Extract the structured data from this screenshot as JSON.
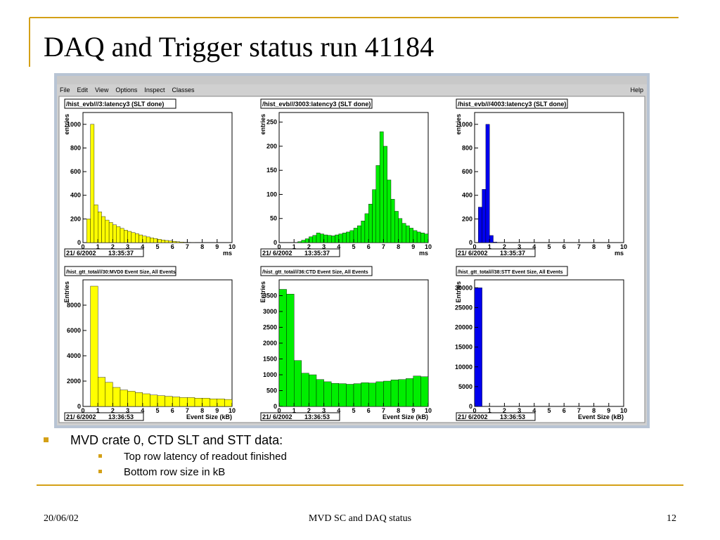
{
  "slide": {
    "title": "DAQ and Trigger status run 41184",
    "bullets": [
      {
        "text": "MVD crate 0, CTD SLT and STT data:",
        "sub": [
          "Top row latency of readout finished",
          "Bottom row size in kB"
        ]
      }
    ],
    "footer": {
      "date": "20/06/02",
      "center": "MVD SC and DAQ status",
      "page": "12"
    }
  },
  "window": {
    "menu": [
      "File",
      "Edit",
      "View",
      "Options",
      "Inspect",
      "Classes"
    ],
    "help": "Help"
  },
  "chart_data": [
    {
      "type": "histogram",
      "title": "/hist_evb///3:latency3 (SLT done)",
      "ylabel": "entries",
      "xlabel": "ms",
      "date": "21/ 6/2002",
      "time": "13:35:37",
      "color": "#ffff00",
      "bins": [
        0,
        0.25,
        0.5,
        0.75,
        1,
        1.25,
        1.5,
        1.75,
        2,
        2.25,
        2.5,
        2.75,
        3,
        3.25,
        3.5,
        3.75,
        4,
        4.25,
        4.5,
        4.75,
        5,
        5.25,
        5.5,
        5.75,
        6,
        6.25,
        6.5,
        6.75,
        7,
        7.25,
        7.5,
        7.75,
        8,
        8.25,
        8.5,
        8.75,
        9,
        9.25,
        9.5,
        9.75,
        10
      ],
      "values": [
        0,
        200,
        1000,
        320,
        260,
        220,
        190,
        170,
        150,
        135,
        120,
        105,
        95,
        85,
        75,
        65,
        55,
        48,
        40,
        34,
        28,
        22,
        18,
        14,
        10,
        7,
        5,
        3,
        2,
        1,
        0,
        0,
        0,
        0,
        0,
        0,
        0,
        0,
        0,
        0
      ],
      "xlim": [
        0,
        10
      ],
      "ylim": [
        0,
        1100
      ],
      "xticks": [
        0,
        1,
        2,
        3,
        4,
        5,
        6,
        7,
        8,
        9,
        10
      ],
      "yticks": [
        0,
        200,
        400,
        600,
        800,
        1000
      ]
    },
    {
      "type": "histogram",
      "title": "/hist_evb///3003:latency3 (SLT done)",
      "ylabel": "entries",
      "xlabel": "ms",
      "date": "21/ 6/2002",
      "time": "13:35:37",
      "color": "#00ee00",
      "bins": [
        0,
        0.25,
        0.5,
        0.75,
        1,
        1.25,
        1.5,
        1.75,
        2,
        2.25,
        2.5,
        2.75,
        3,
        3.25,
        3.5,
        3.75,
        4,
        4.25,
        4.5,
        4.75,
        5,
        5.25,
        5.5,
        5.75,
        6,
        6.25,
        6.5,
        6.75,
        7,
        7.25,
        7.5,
        7.75,
        8,
        8.25,
        8.5,
        8.75,
        9,
        9.25,
        9.5,
        9.75,
        10
      ],
      "values": [
        0,
        0,
        0,
        0,
        0,
        2,
        5,
        8,
        12,
        15,
        20,
        18,
        16,
        15,
        14,
        16,
        18,
        20,
        22,
        25,
        30,
        35,
        45,
        60,
        80,
        110,
        160,
        230,
        200,
        130,
        90,
        65,
        50,
        40,
        35,
        30,
        25,
        22,
        20,
        18
      ],
      "xlim": [
        0,
        10
      ],
      "ylim": [
        0,
        270
      ],
      "xticks": [
        0,
        1,
        2,
        3,
        4,
        5,
        6,
        7,
        8,
        9,
        10
      ],
      "yticks": [
        0,
        50,
        100,
        150,
        200,
        250
      ]
    },
    {
      "type": "histogram",
      "title": "/hist_evb///4003:latency3 (SLT done)",
      "ylabel": "entries",
      "xlabel": "ms",
      "date": "21/ 6/2002",
      "time": "13:35:37",
      "color": "#0000ee",
      "bins": [
        0,
        0.25,
        0.5,
        0.75,
        1,
        1.25,
        1.5,
        1.75,
        2,
        2.25,
        2.5,
        2.75,
        3,
        3.25,
        3.5,
        3.75,
        4,
        4.25,
        4.5,
        4.75,
        5,
        5.25,
        5.5,
        5.75,
        6,
        6.25,
        6.5,
        6.75,
        7,
        7.25,
        7.5,
        7.75,
        8,
        8.25,
        8.5,
        8.75,
        9,
        9.25,
        9.5,
        9.75,
        10
      ],
      "values": [
        0,
        300,
        450,
        1000,
        60,
        5,
        0,
        0,
        0,
        0,
        0,
        0,
        0,
        0,
        0,
        0,
        0,
        0,
        0,
        0,
        0,
        0,
        0,
        0,
        0,
        0,
        0,
        0,
        0,
        0,
        0,
        0,
        0,
        0,
        0,
        0,
        0,
        0,
        0,
        0
      ],
      "xlim": [
        0,
        10
      ],
      "ylim": [
        0,
        1100
      ],
      "xticks": [
        0,
        1,
        2,
        3,
        4,
        5,
        6,
        7,
        8,
        9,
        10
      ],
      "yticks": [
        0,
        200,
        400,
        600,
        800,
        1000
      ]
    },
    {
      "type": "histogram",
      "title": "/hist_gtt_total///30:MVD0 Event Size, All Events",
      "ylabel": "Entries",
      "xlabel": "Event Size (kB)",
      "date": "21/ 6/2002",
      "time": "13:36:53",
      "color": "#ffff00",
      "bins": [
        0,
        0.5,
        1,
        1.5,
        2,
        2.5,
        3,
        3.5,
        4,
        4.5,
        5,
        5.5,
        6,
        6.5,
        7,
        7.5,
        8,
        8.5,
        9,
        9.5,
        10
      ],
      "values": [
        0,
        9500,
        2300,
        1900,
        1500,
        1300,
        1200,
        1100,
        1000,
        900,
        850,
        800,
        750,
        700,
        700,
        650,
        650,
        600,
        600,
        550
      ],
      "xlim": [
        0,
        10
      ],
      "ylim": [
        0,
        10000
      ],
      "xticks": [
        0,
        1,
        2,
        3,
        4,
        5,
        6,
        7,
        8,
        9,
        10
      ],
      "yticks": [
        0,
        2000,
        4000,
        6000,
        8000
      ]
    },
    {
      "type": "histogram",
      "title": "/hist_gtt_total///36:CTD Event Size, All Events",
      "ylabel": "Entries",
      "xlabel": "Event Size (kB)",
      "date": "21/ 6/2002",
      "time": "13:36:53",
      "color": "#00ee00",
      "bins": [
        0,
        0.5,
        1,
        1.5,
        2,
        2.5,
        3,
        3.5,
        4,
        4.5,
        5,
        5.5,
        6,
        6.5,
        7,
        7.5,
        8,
        8.5,
        9,
        9.5,
        10
      ],
      "values": [
        3700,
        3550,
        1450,
        1050,
        1000,
        850,
        780,
        730,
        720,
        700,
        720,
        750,
        740,
        780,
        800,
        840,
        850,
        880,
        960,
        940
      ],
      "xlim": [
        0,
        10
      ],
      "ylim": [
        0,
        4000
      ],
      "xticks": [
        0,
        1,
        2,
        3,
        4,
        5,
        6,
        7,
        8,
        9,
        10
      ],
      "yticks": [
        0,
        500,
        1000,
        1500,
        2000,
        2500,
        3000,
        3500
      ]
    },
    {
      "type": "histogram",
      "title": "/hist_gtt_total///38:STT Event Size, All Events",
      "ylabel": "Entries",
      "xlabel": "Event Size (kB)",
      "date": "21/ 6/2002",
      "time": "13:36:53",
      "color": "#0000ee",
      "bins": [
        0,
        0.5,
        1,
        1.5,
        2,
        2.5,
        3,
        3.5,
        4,
        4.5,
        5,
        5.5,
        6,
        6.5,
        7,
        7.5,
        8,
        8.5,
        9,
        9.5,
        10
      ],
      "values": [
        30000,
        0,
        0,
        0,
        0,
        0,
        0,
        0,
        0,
        0,
        0,
        0,
        0,
        0,
        0,
        0,
        0,
        0,
        0,
        0
      ],
      "xlim": [
        0,
        10
      ],
      "ylim": [
        0,
        32000
      ],
      "xticks": [
        0,
        1,
        2,
        3,
        4,
        5,
        6,
        7,
        8,
        9,
        10
      ],
      "yticks": [
        0,
        5000,
        10000,
        15000,
        20000,
        25000,
        30000
      ]
    }
  ]
}
